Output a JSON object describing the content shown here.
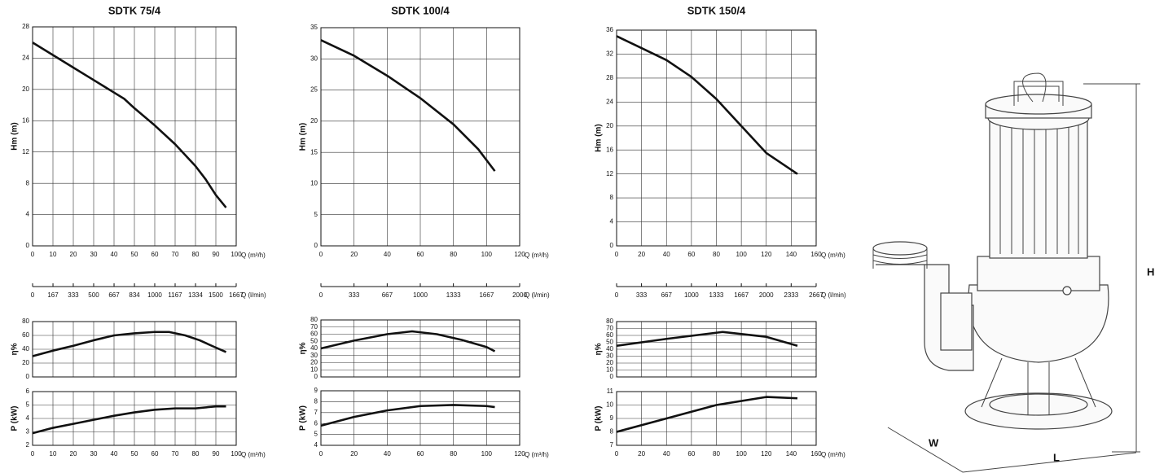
{
  "chart_data": [
    {
      "type": "line",
      "title": "SDTK 75/4",
      "y_label": "Hm  (m)",
      "x_label": "Q (m³/h)",
      "x2_label": "Q (l/min)",
      "xlim": [
        0,
        100
      ],
      "xticks": [
        0,
        10,
        20,
        30,
        40,
        50,
        60,
        70,
        80,
        90,
        100
      ],
      "x2lim": [
        0,
        1667
      ],
      "x2ticks": [
        0,
        167,
        333,
        500,
        667,
        834,
        1000,
        1167,
        1334,
        1500,
        1667
      ],
      "ylim": [
        0,
        28
      ],
      "yticks": [
        0,
        4,
        8,
        12,
        16,
        20,
        24,
        28
      ],
      "grid": true,
      "x": [
        0,
        10,
        20,
        30,
        40,
        45,
        50,
        60,
        70,
        80,
        85,
        90,
        95
      ],
      "series": [
        {
          "color": "#111111",
          "values": [
            26,
            24.4,
            22.8,
            21.2,
            19.6,
            18.8,
            17.6,
            15.4,
            13,
            10.2,
            8.5,
            6.5,
            4.9
          ]
        }
      ]
    },
    {
      "type": "line",
      "y_label": "η%",
      "show_xtick_labels": false,
      "xlim": [
        0,
        100
      ],
      "xticks": [
        0,
        10,
        20,
        30,
        40,
        50,
        60,
        70,
        80,
        90,
        100
      ],
      "ylim": [
        0,
        80
      ],
      "yticks": [
        0,
        20,
        40,
        60,
        80
      ],
      "grid": true,
      "x": [
        0,
        10,
        20,
        30,
        40,
        50,
        60,
        67,
        75,
        82,
        88,
        95
      ],
      "series": [
        {
          "color": "#111111",
          "values": [
            30,
            38,
            45,
            53,
            60,
            63,
            65,
            65,
            60,
            53,
            45,
            36
          ]
        }
      ]
    },
    {
      "type": "line",
      "y_label": "P  (kW)",
      "x_label": "Q (m³/h)",
      "xlim": [
        0,
        100
      ],
      "xticks": [
        0,
        10,
        20,
        30,
        40,
        50,
        60,
        70,
        80,
        90,
        100
      ],
      "ylim": [
        2,
        6
      ],
      "yticks": [
        2,
        3,
        4,
        5,
        6
      ],
      "grid": true,
      "x": [
        0,
        10,
        20,
        30,
        40,
        50,
        60,
        70,
        80,
        90,
        95
      ],
      "series": [
        {
          "color": "#111111",
          "values": [
            2.9,
            3.3,
            3.6,
            3.9,
            4.2,
            4.45,
            4.65,
            4.75,
            4.75,
            4.9,
            4.9
          ]
        }
      ]
    },
    {
      "type": "line",
      "title": "SDTK 100/4",
      "y_label": "Hm  (m)",
      "x_label": "Q (m³/h)",
      "x2_label": "Q (l/min)",
      "xlim": [
        0,
        120
      ],
      "xticks": [
        0,
        20,
        40,
        60,
        80,
        100,
        120
      ],
      "x2lim": [
        0,
        2000
      ],
      "x2ticks": [
        0,
        333,
        667,
        1000,
        1333,
        1667,
        2000
      ],
      "ylim": [
        0,
        35
      ],
      "yticks": [
        0,
        5,
        10,
        15,
        20,
        25,
        30,
        35
      ],
      "grid": true,
      "x": [
        0,
        20,
        40,
        60,
        80,
        95,
        105
      ],
      "series": [
        {
          "color": "#111111",
          "values": [
            33,
            30.5,
            27.3,
            23.7,
            19.5,
            15.5,
            12
          ]
        }
      ]
    },
    {
      "type": "line",
      "y_label": "η%",
      "show_xtick_labels": false,
      "xlim": [
        0,
        120
      ],
      "xticks": [
        0,
        20,
        40,
        60,
        80,
        100,
        120
      ],
      "ylim": [
        0,
        80
      ],
      "yticks": [
        0,
        10,
        20,
        30,
        40,
        50,
        60,
        70,
        80
      ],
      "grid": true,
      "x": [
        0,
        20,
        40,
        55,
        70,
        85,
        100,
        105
      ],
      "series": [
        {
          "color": "#111111",
          "values": [
            40,
            51,
            60,
            64,
            60,
            52,
            42,
            36
          ]
        }
      ]
    },
    {
      "type": "line",
      "y_label": "P  (kW)",
      "x_label": "Q (m³/h)",
      "xlim": [
        0,
        120
      ],
      "xticks": [
        0,
        20,
        40,
        60,
        80,
        100,
        120
      ],
      "ylim": [
        4,
        9
      ],
      "yticks": [
        4,
        5,
        6,
        7,
        8,
        9
      ],
      "grid": true,
      "x": [
        0,
        20,
        40,
        60,
        80,
        100,
        105
      ],
      "series": [
        {
          "color": "#111111",
          "values": [
            5.8,
            6.6,
            7.2,
            7.6,
            7.7,
            7.6,
            7.5
          ]
        }
      ]
    },
    {
      "type": "line",
      "title": "SDTK 150/4",
      "y_label": "Hm  (m)",
      "x_label": "Q (m³/h)",
      "x2_label": "Q (l/min)",
      "xlim": [
        0,
        160
      ],
      "xticks": [
        0,
        20,
        40,
        60,
        80,
        100,
        120,
        140,
        160
      ],
      "x2lim": [
        0,
        2667
      ],
      "x2ticks": [
        0,
        333,
        667,
        1000,
        1333,
        1667,
        2000,
        2333,
        2667
      ],
      "ylim": [
        0,
        36
      ],
      "yticks": [
        0,
        4,
        8,
        12,
        16,
        20,
        24,
        28,
        32,
        36
      ],
      "grid": true,
      "x": [
        0,
        20,
        40,
        60,
        80,
        100,
        120,
        145
      ],
      "series": [
        {
          "color": "#111111",
          "values": [
            35,
            33,
            31,
            28.2,
            24.5,
            20,
            15.5,
            12
          ]
        }
      ]
    },
    {
      "type": "line",
      "y_label": "η%",
      "show_xtick_labels": false,
      "xlim": [
        0,
        160
      ],
      "xticks": [
        0,
        20,
        40,
        60,
        80,
        100,
        120,
        140,
        160
      ],
      "ylim": [
        0,
        80
      ],
      "yticks": [
        0,
        10,
        20,
        30,
        40,
        50,
        60,
        70,
        80
      ],
      "grid": true,
      "x": [
        0,
        40,
        85,
        120,
        145
      ],
      "series": [
        {
          "color": "#111111",
          "values": [
            45,
            55,
            65,
            58,
            45
          ]
        }
      ]
    },
    {
      "type": "line",
      "y_label": "P  (kW)",
      "x_label": "Q (m³/h)",
      "xlim": [
        0,
        160
      ],
      "xticks": [
        0,
        20,
        40,
        60,
        80,
        100,
        120,
        140,
        160
      ],
      "ylim": [
        7,
        11
      ],
      "yticks": [
        7,
        8,
        9,
        10,
        11
      ],
      "grid": true,
      "x": [
        0,
        40,
        80,
        120,
        145
      ],
      "series": [
        {
          "color": "#111111",
          "values": [
            8,
            9,
            10,
            10.6,
            10.5
          ]
        }
      ]
    }
  ],
  "drawing": {
    "height_label": "H",
    "width_label": "W",
    "length_label": "L"
  }
}
